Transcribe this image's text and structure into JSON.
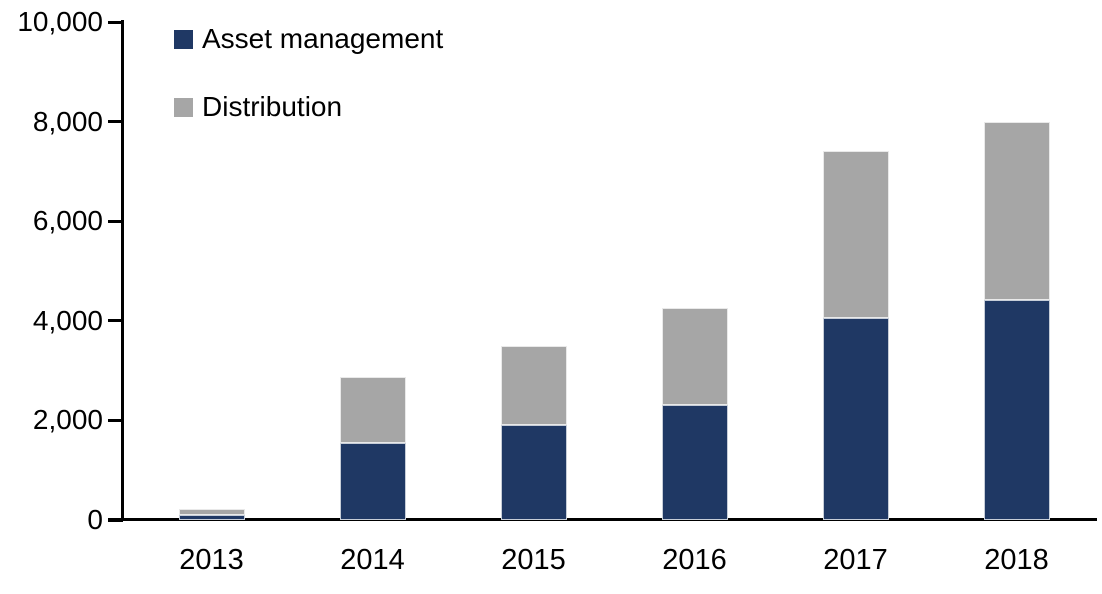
{
  "chart_data": {
    "type": "bar",
    "stacked": true,
    "title": "",
    "xlabel": "",
    "ylabel": "",
    "categories": [
      "2013",
      "2014",
      "2015",
      "2016",
      "2017",
      "2018"
    ],
    "series": [
      {
        "name": "Asset management",
        "color": "#1F3864",
        "values": [
          100,
          1550,
          1900,
          2300,
          4050,
          4420
        ]
      },
      {
        "name": "Distribution",
        "color": "#A6A6A6",
        "values": [
          115,
          1320,
          1600,
          1950,
          3350,
          3580
        ]
      }
    ],
    "ylim": [
      0,
      10000
    ],
    "ytick_step": 2000,
    "ytick_labels": [
      "0",
      "2,000",
      "4,000",
      "6,000",
      "8,000",
      "10,000"
    ],
    "grid": false,
    "legend_position": "top-left",
    "axis_color": "#000000"
  }
}
